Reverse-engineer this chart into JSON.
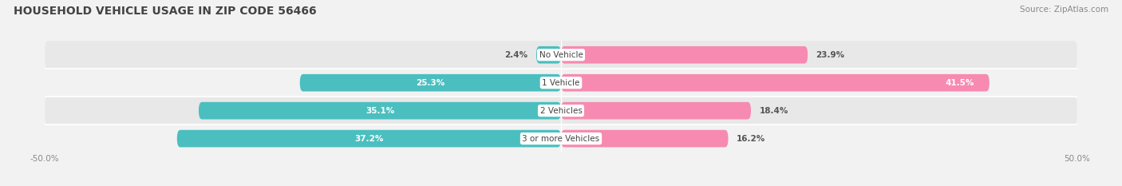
{
  "title": "HOUSEHOLD VEHICLE USAGE IN ZIP CODE 56466",
  "source": "Source: ZipAtlas.com",
  "categories": [
    "No Vehicle",
    "1 Vehicle",
    "2 Vehicles",
    "3 or more Vehicles"
  ],
  "owner_values": [
    2.4,
    25.3,
    35.1,
    37.2
  ],
  "renter_values": [
    23.9,
    41.5,
    18.4,
    16.2
  ],
  "owner_color": "#4BBFBF",
  "renter_color": "#F78AB0",
  "owner_color_light": "#7DD8D8",
  "renter_color_light": "#F9B8CD",
  "bg_color": "#f2f2f2",
  "row_bg_even": "#e8e8e8",
  "row_bg_odd": "#f2f2f2",
  "title_fontsize": 10,
  "source_fontsize": 7.5,
  "label_fontsize": 7.5,
  "cat_fontsize": 7.5,
  "legend_fontsize": 8,
  "xlim_min": -50,
  "xlim_max": 50,
  "x_tick_labels": [
    "-50.0%",
    "50.0%"
  ]
}
